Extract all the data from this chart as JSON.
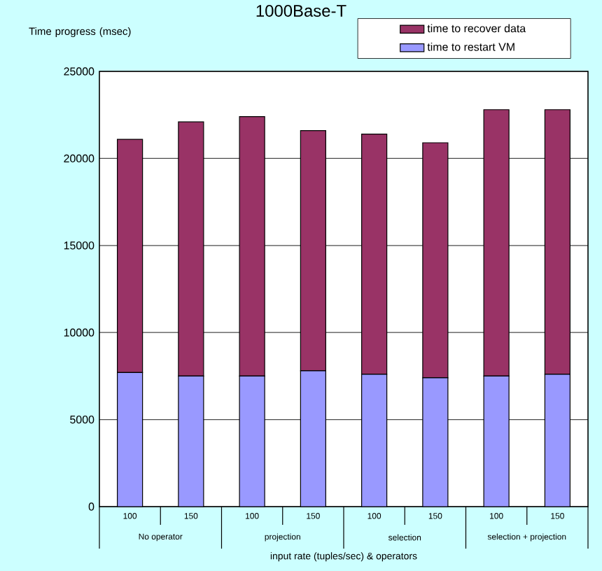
{
  "chart_data": {
    "type": "bar",
    "stacked": true,
    "title": "1000Base-T",
    "ylabel": "Time progress (msec)",
    "xlabel": "input rate (tuples/sec) & operators",
    "categories": [
      "100",
      "150",
      "100",
      "150",
      "100",
      "150",
      "100",
      "150"
    ],
    "series": [
      {
        "name": "time to restart VM",
        "color": "#9999ff",
        "values": [
          7700,
          7500,
          7500,
          7800,
          7600,
          7400,
          7500,
          7600
        ]
      },
      {
        "name": "time to recover data",
        "color": "#993366",
        "values": [
          13400,
          14600,
          14900,
          13800,
          13800,
          13500,
          15300,
          15200
        ]
      }
    ],
    "annotations": [
      "No operator",
      "projection",
      "selection",
      "selection + projection"
    ],
    "ylim": [
      0,
      25000
    ],
    "yticks": [
      0,
      5000,
      10000,
      15000,
      20000,
      25000
    ],
    "grid": "y",
    "legend": "top right"
  }
}
